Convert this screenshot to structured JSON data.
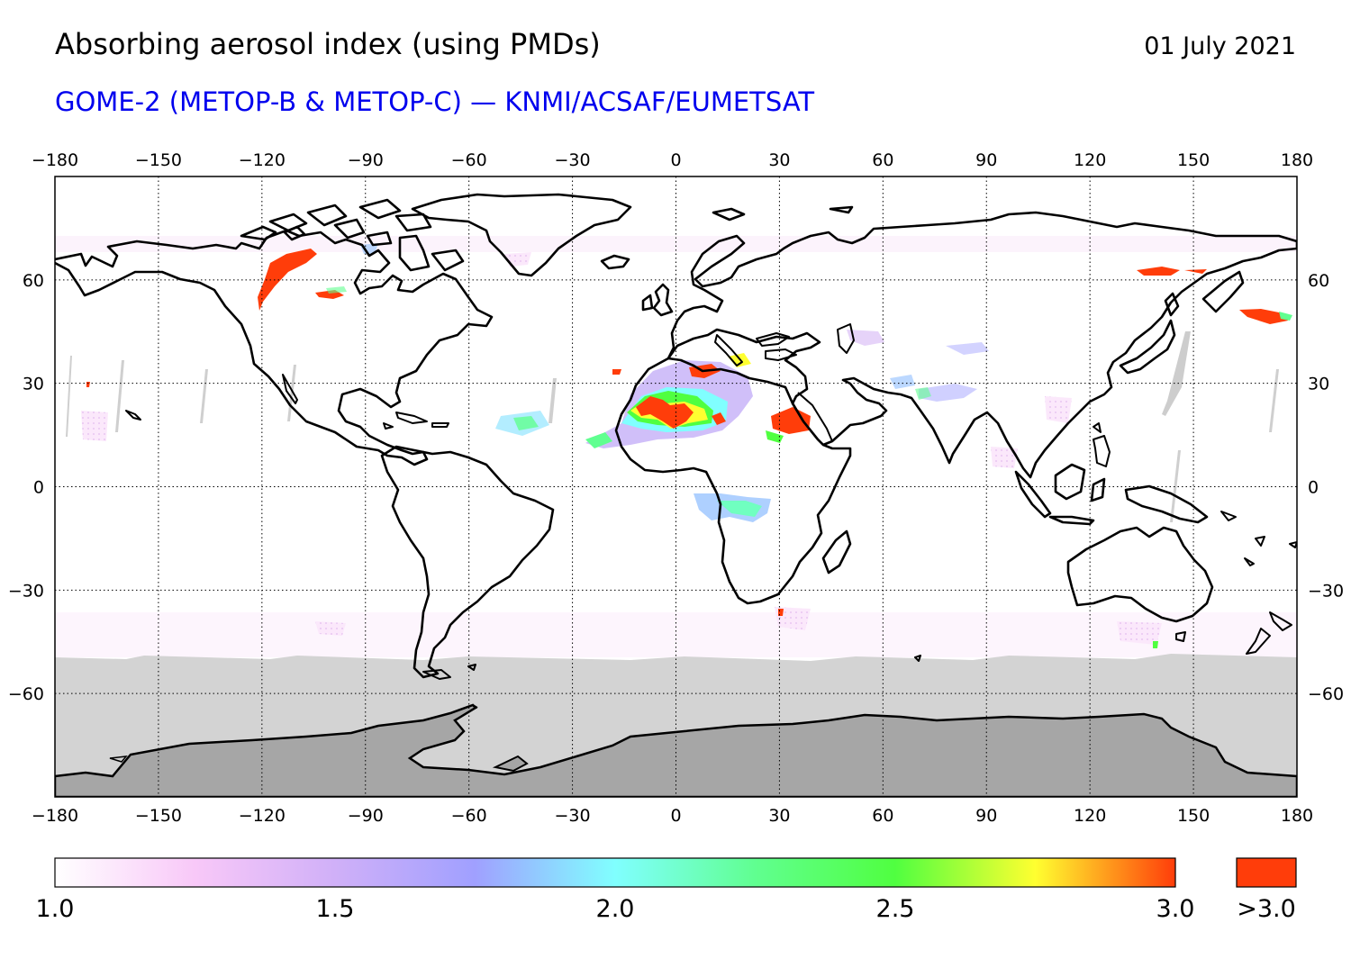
{
  "title": "Absorbing aerosol index (using PMDs)",
  "date": "01 July 2021",
  "subtitle": "GOME-2 (METOP-B & METOP-C) — KNMI/ACSAF/EUMETSAT",
  "colors": {
    "subtitle": "#0000ee",
    "no_data": "#d3d3d3",
    "land_no_data": "#a6a6a6",
    "high": "#ff3d0a"
  },
  "map": {
    "x_ticks": [
      "−180",
      "−150",
      "−120",
      "−90",
      "−60",
      "−30",
      "0",
      "30",
      "60",
      "90",
      "120",
      "150",
      "180"
    ],
    "y_ticks": [
      "60",
      "30",
      "0",
      "−30",
      "−60"
    ]
  },
  "colorbar": {
    "labels": [
      "1.0",
      "1.5",
      "2.0",
      "2.5",
      "3.0"
    ],
    "overflow_label": ">3.0",
    "stops": [
      {
        "value": 1.0,
        "color": "#ffffff"
      },
      {
        "value": 1.25,
        "color": "#f8c8f8"
      },
      {
        "value": 1.5,
        "color": "#d0b0f8"
      },
      {
        "value": 1.75,
        "color": "#a0a0ff"
      },
      {
        "value": 2.0,
        "color": "#80ffff"
      },
      {
        "value": 2.25,
        "color": "#60ff90"
      },
      {
        "value": 2.5,
        "color": "#50ff40"
      },
      {
        "value": 2.75,
        "color": "#ffff30"
      },
      {
        "value": 3.0,
        "color": "#ff3d0a"
      }
    ]
  }
}
